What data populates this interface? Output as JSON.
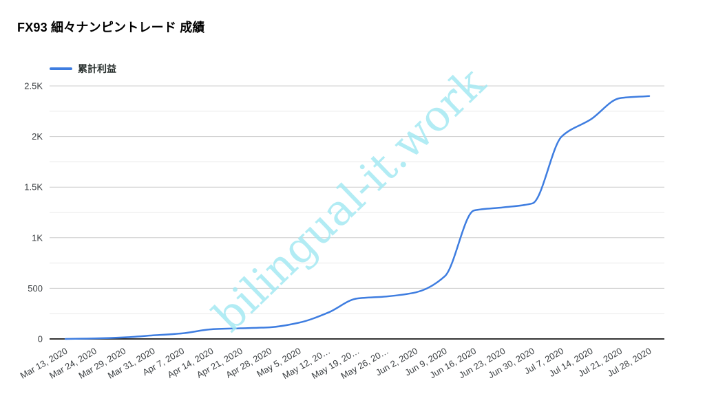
{
  "title": "FX93 細々ナンピントレード 成績",
  "watermark_text": "bilingual-it.work",
  "legend": {
    "label": "累計利益"
  },
  "colors": {
    "series_line": "#3e7de0",
    "axis_line": "#333333",
    "grid_major": "#cccccc",
    "grid_minor": "#e9e9e9",
    "tick_label": "#3c4043",
    "title_text": "#000000",
    "watermark": "#a5e9f3",
    "background": "#ffffff"
  },
  "chart_data": {
    "type": "line",
    "title": "FX93 細々ナンピントレード 成績",
    "legend_position": "top-left",
    "grid": true,
    "smooth": true,
    "xlabel": "",
    "ylabel": "",
    "ylim": [
      0,
      2500
    ],
    "y_major_step": 500,
    "y_minor_step": 250,
    "y_tick_labels": [
      "0",
      "500",
      "1K",
      "1.5K",
      "2K",
      "2.5K"
    ],
    "x_label_rotation_deg": -30,
    "categories": [
      "Mar 13, 2020",
      "Mar 24, 2020",
      "Mar 29, 2020",
      "Mar 31, 2020",
      "Apr 7, 2020",
      "Apr 14, 2020",
      "Apr 21, 2020",
      "Apr 28, 2020",
      "May 5, 2020",
      "May 12, 20…",
      "May 19, 20…",
      "May 26, 20…",
      "Jun 2, 2020",
      "Jun 9, 2020",
      "Jun 16, 2020",
      "Jun 23, 2020",
      "Jun 30, 2020",
      "Jul 7, 2020",
      "Jul 14, 2020",
      "Jul 21, 2020",
      "Jul 28, 2020"
    ],
    "series": [
      {
        "name": "累計利益",
        "values": [
          0,
          5,
          15,
          35,
          55,
          95,
          105,
          115,
          160,
          260,
          400,
          420,
          460,
          620,
          1270,
          1300,
          1340,
          2000,
          2170,
          2380,
          2400
        ]
      }
    ]
  }
}
